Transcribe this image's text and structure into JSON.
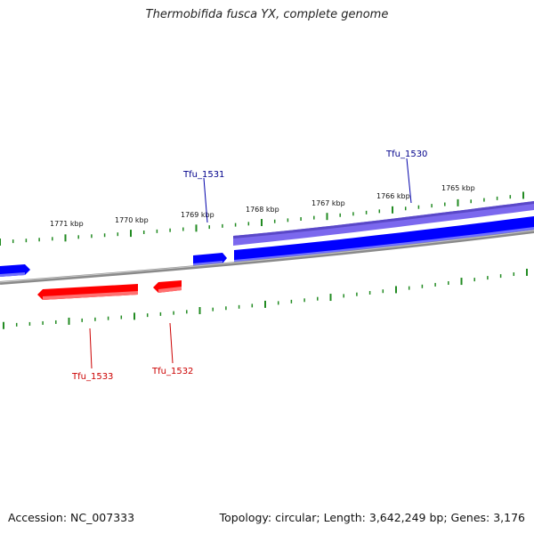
{
  "title": "Thermobifida fusca YX, complete genome",
  "footer": {
    "accession": "Accession: NC_007333",
    "summary": "Topology: circular; Length: 3,642,249 bp; Genes: 3,176"
  },
  "colors": {
    "forward_gene": "#0000ff",
    "forward_gene_light": "#6a5acd",
    "reverse_gene": "#ff0000",
    "tick": "#228b22",
    "backbone": "#808080"
  },
  "scale_labels": [
    "1771 kbp",
    "1770 kbp",
    "1769 kbp",
    "1768 kbp",
    "1767 kbp",
    "1766 kbp",
    "1765 kbp"
  ],
  "gene_labels": {
    "tfu_1531": "Tfu_1531",
    "tfu_1530": "Tfu_1530",
    "tfu_1533": "Tfu_1533",
    "tfu_1532": "Tfu_1532"
  }
}
